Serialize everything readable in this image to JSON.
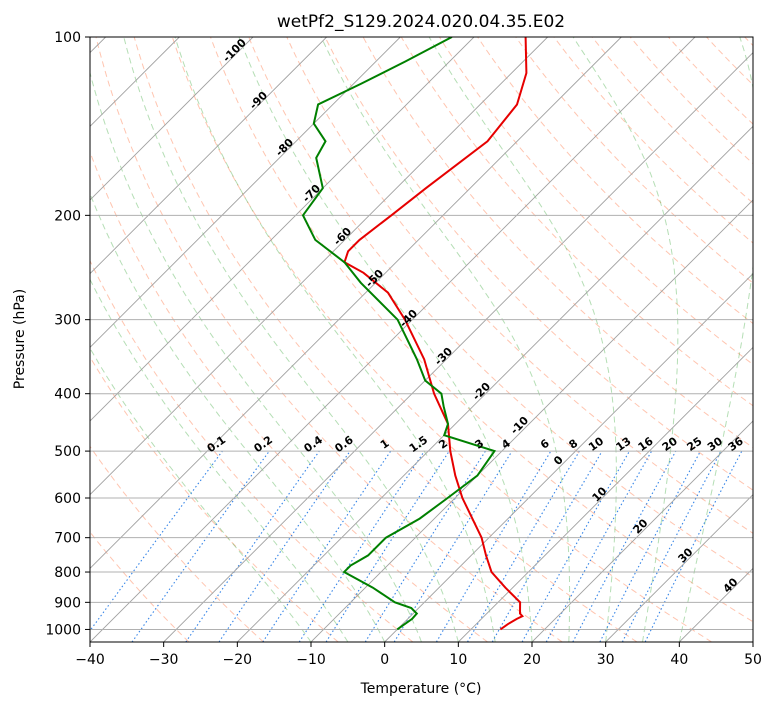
{
  "chart_data": {
    "type": "line",
    "title": "wetPf2_S129.2024.020.04.35.E02",
    "xlabel": "Temperature (°C)",
    "ylabel": "Pressure (hPa)",
    "xlim": [
      -40,
      50
    ],
    "ylim": [
      1050,
      100
    ],
    "y_scale": "log",
    "grid": true,
    "x_ticks": [
      -40,
      -30,
      -20,
      -10,
      0,
      10,
      20,
      30,
      40,
      50
    ],
    "y_ticks": [
      100,
      200,
      300,
      400,
      500,
      600,
      700,
      800,
      900,
      1000
    ],
    "x_tick_labels": [
      "−40",
      "−30",
      "−20",
      "−10",
      "0",
      "10",
      "20",
      "30",
      "40",
      "50"
    ],
    "y_tick_labels": [
      "100",
      "200",
      "300",
      "400",
      "500",
      "600",
      "700",
      "800",
      "900",
      "1000"
    ],
    "background_lines": {
      "isotherms": "solid grey, skewed",
      "dry_adiabats": "dashed orange-red",
      "moist_adiabats": "dashed green",
      "mixing_ratio": "dotted blue"
    },
    "dry_adiabat_labels": [
      "-100",
      "-90",
      "-80",
      "-70",
      "-60",
      "-50",
      "-40",
      "-30",
      "-20",
      "-10",
      "0",
      "10",
      "20",
      "30",
      "40"
    ],
    "mixing_ratio_labels": [
      "0.1",
      "0.2",
      "0.4",
      "0.6",
      "1",
      "1.5",
      "2",
      "3",
      "4",
      "6",
      "8",
      "10",
      "13",
      "16",
      "20",
      "25",
      "30",
      "36"
    ],
    "series": [
      {
        "color": "#e60000",
        "points": [
          {
            "p": 1000,
            "t": 14.0
          },
          {
            "p": 980,
            "t": 14.3
          },
          {
            "p": 960,
            "t": 14.8
          },
          {
            "p": 950,
            "t": 15.2
          },
          {
            "p": 940,
            "t": 14.5
          },
          {
            "p": 900,
            "t": 13.0
          },
          {
            "p": 850,
            "t": 9.0
          },
          {
            "p": 800,
            "t": 5.0
          },
          {
            "p": 750,
            "t": 2.0
          },
          {
            "p": 700,
            "t": -1.0
          },
          {
            "p": 600,
            "t": -9.0
          },
          {
            "p": 550,
            "t": -13.0
          },
          {
            "p": 500,
            "t": -17.0
          },
          {
            "p": 450,
            "t": -21.0
          },
          {
            "p": 400,
            "t": -27.0
          },
          {
            "p": 350,
            "t": -33.0
          },
          {
            "p": 300,
            "t": -41.0
          },
          {
            "p": 270,
            "t": -47.0
          },
          {
            "p": 250,
            "t": -53.0
          },
          {
            "p": 240,
            "t": -57.0
          },
          {
            "p": 230,
            "t": -58.0
          },
          {
            "p": 220,
            "t": -58.0
          },
          {
            "p": 200,
            "t": -57.0
          },
          {
            "p": 180,
            "t": -56.0
          },
          {
            "p": 150,
            "t": -54.0
          },
          {
            "p": 130,
            "t": -55.0
          },
          {
            "p": 115,
            "t": -58.0
          },
          {
            "p": 100,
            "t": -63.0
          }
        ]
      },
      {
        "color": "#008000",
        "points": [
          {
            "p": 1000,
            "t": 0.0
          },
          {
            "p": 980,
            "t": 0.3
          },
          {
            "p": 960,
            "t": 0.6
          },
          {
            "p": 940,
            "t": 0.5
          },
          {
            "p": 920,
            "t": -1.0
          },
          {
            "p": 900,
            "t": -4.0
          },
          {
            "p": 850,
            "t": -9.0
          },
          {
            "p": 800,
            "t": -15.0
          },
          {
            "p": 780,
            "t": -15.0
          },
          {
            "p": 750,
            "t": -14.0
          },
          {
            "p": 700,
            "t": -14.0
          },
          {
            "p": 650,
            "t": -12.0
          },
          {
            "p": 600,
            "t": -11.0
          },
          {
            "p": 550,
            "t": -10.0
          },
          {
            "p": 500,
            "t": -11.0
          },
          {
            "p": 470,
            "t": -20.0
          },
          {
            "p": 450,
            "t": -21.0
          },
          {
            "p": 420,
            "t": -24.0
          },
          {
            "p": 400,
            "t": -26.0
          },
          {
            "p": 380,
            "t": -30.0
          },
          {
            "p": 350,
            "t": -34.0
          },
          {
            "p": 300,
            "t": -42.0
          },
          {
            "p": 260,
            "t": -52.0
          },
          {
            "p": 240,
            "t": -57.0
          },
          {
            "p": 220,
            "t": -64.0
          },
          {
            "p": 200,
            "t": -69.0
          },
          {
            "p": 180,
            "t": -70.0
          },
          {
            "p": 160,
            "t": -75.0
          },
          {
            "p": 150,
            "t": -76.0
          },
          {
            "p": 140,
            "t": -80.0
          },
          {
            "p": 130,
            "t": -82.0
          },
          {
            "p": 120,
            "t": -79.0
          },
          {
            "p": 110,
            "t": -76.0
          },
          {
            "p": 100,
            "t": -73.0
          }
        ]
      }
    ]
  }
}
